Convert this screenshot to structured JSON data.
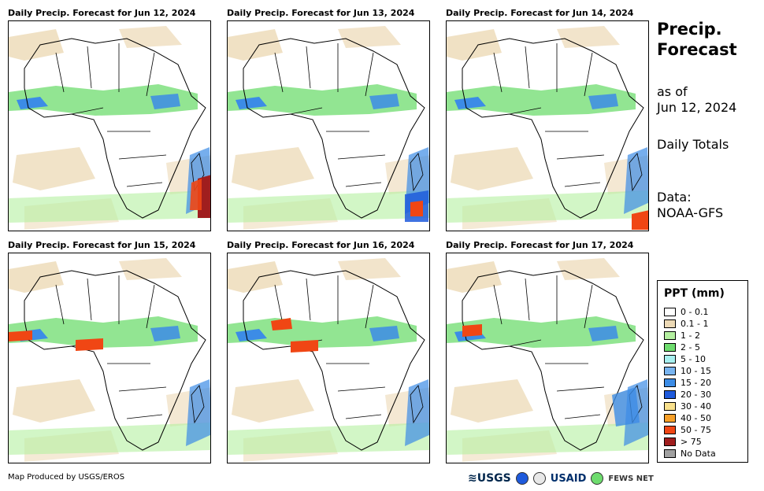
{
  "panels": [
    {
      "title": "Daily Precip. Forecast for Jun 12, 2024"
    },
    {
      "title": "Daily Precip. Forecast for Jun 13, 2024"
    },
    {
      "title": "Daily Precip. Forecast for Jun 14, 2024"
    },
    {
      "title": "Daily Precip. Forecast for Jun 15, 2024"
    },
    {
      "title": "Daily Precip. Forecast for Jun 16, 2024"
    },
    {
      "title": "Daily Precip. Forecast for Jun 17, 2024"
    }
  ],
  "sidebar": {
    "title_line1": "Precip.",
    "title_line2": "Forecast",
    "asof_line1": "as of",
    "asof_line2": "Jun 12, 2024",
    "totals": "Daily Totals",
    "data_line1": "Data:",
    "data_line2": "NOAA-GFS"
  },
  "legend": {
    "title": "PPT (mm)",
    "items": [
      {
        "label": "0 - 0.1",
        "color": "#ffffff"
      },
      {
        "label": "0.1 - 1",
        "color": "#ecd9b5"
      },
      {
        "label": "1 - 2",
        "color": "#b4f0a0"
      },
      {
        "label": "2 - 5",
        "color": "#6edc6e"
      },
      {
        "label": "5 - 10",
        "color": "#a8f0f0"
      },
      {
        "label": "10 - 15",
        "color": "#78b4f0"
      },
      {
        "label": "15 - 20",
        "color": "#3c8ce6"
      },
      {
        "label": "20 - 30",
        "color": "#1e5adc"
      },
      {
        "label": "30 - 40",
        "color": "#f8e08c"
      },
      {
        "label": "40 - 50",
        "color": "#f8a028"
      },
      {
        "label": "50 - 75",
        "color": "#f04614"
      },
      {
        "label": "> 75",
        "color": "#a01e1e"
      },
      {
        "label": "No Data",
        "color": "#a0a0a0"
      }
    ]
  },
  "footer": {
    "credit": "Map Produced by USGS/EROS",
    "logo_usgs": "≋USGS",
    "logo_usaid": "USAID",
    "logo_fews": "FEWS NET"
  }
}
